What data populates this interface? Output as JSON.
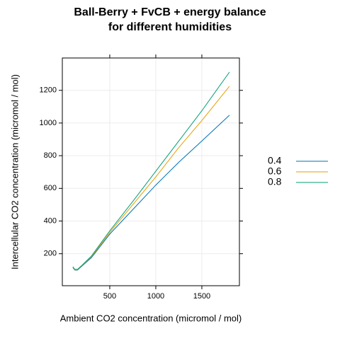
{
  "chart_data": {
    "type": "line",
    "title": [
      "Ball-Berry + FvCB + energy balance",
      "for different humidities"
    ],
    "x_label": "Ambient CO2 concentration (micromol / mol)",
    "y_label": "Intercellular CO2 concentration (micromol / mol)",
    "x": [
      100,
      120,
      150,
      200,
      300,
      500,
      750,
      1000,
      1250,
      1500,
      1800
    ],
    "series": [
      {
        "name": "0.4",
        "color": "#0072B2",
        "values": [
          115,
          100,
          100,
          125,
          175,
          320,
          470,
          620,
          760,
          890,
          1048
        ]
      },
      {
        "name": "0.6",
        "color": "#E69F00",
        "values": [
          118,
          102,
          102,
          128,
          180,
          330,
          500,
          670,
          850,
          1015,
          1225
        ]
      },
      {
        "name": "0.8",
        "color": "#009E73",
        "values": [
          120,
          104,
          104,
          130,
          185,
          340,
          520,
          705,
          890,
          1075,
          1312
        ]
      }
    ],
    "xlim": [
      -15,
      1908
    ],
    "ylim": [
      4,
      1398
    ],
    "xticks": [
      500,
      1000,
      1500
    ],
    "yticks": [
      200,
      400,
      600,
      800,
      1000,
      1200
    ],
    "grid": true,
    "legend": "right"
  }
}
